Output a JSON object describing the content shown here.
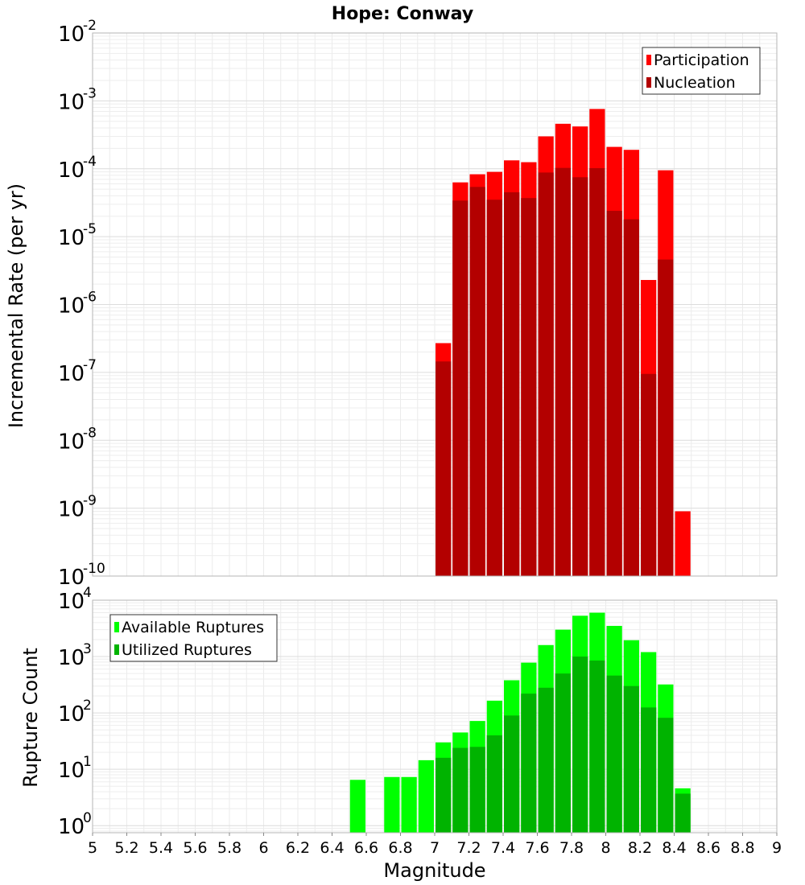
{
  "chart_data": [
    {
      "type": "bar",
      "title": "Hope: Conway",
      "ylabel": "Incremental Rate (per yr)",
      "yscale": "log",
      "ylim": [
        1e-10,
        0.01
      ],
      "xlim": [
        5,
        9
      ],
      "bin_width": 0.1,
      "legend_position": "top-right",
      "grid": true,
      "x": [
        7.05,
        7.15,
        7.25,
        7.35,
        7.45,
        7.55,
        7.65,
        7.75,
        7.85,
        7.95,
        8.05,
        8.15,
        8.25,
        8.35,
        8.45
      ],
      "series": [
        {
          "name": "Participation",
          "color": "#ff0000",
          "values": [
            2.7e-07,
            6.3e-05,
            8.3e-05,
            9e-05,
            0.000133,
            0.000125,
            0.0003,
            0.00046,
            0.00042,
            0.00076,
            0.00021,
            0.00019,
            2.3e-06,
            9.5e-05,
            9e-10
          ]
        },
        {
          "name": "Nucleation",
          "color": "#b30000",
          "values": [
            1.45e-07,
            3.4e-05,
            5.4e-05,
            3.5e-05,
            4.5e-05,
            3.7e-05,
            8.8e-05,
            0.000103,
            7.5e-05,
            0.000102,
            2.4e-05,
            1.8e-05,
            9.5e-08,
            4.6e-06,
            null
          ]
        }
      ],
      "y_ticks": [
        {
          "base": "10",
          "exp": "-10"
        },
        {
          "base": "10",
          "exp": "-9"
        },
        {
          "base": "10",
          "exp": "-8"
        },
        {
          "base": "10",
          "exp": "-7"
        },
        {
          "base": "10",
          "exp": "-6"
        },
        {
          "base": "10",
          "exp": "-5"
        },
        {
          "base": "10",
          "exp": "-4"
        },
        {
          "base": "10",
          "exp": "-3"
        },
        {
          "base": "10",
          "exp": "-2"
        }
      ]
    },
    {
      "type": "bar",
      "ylabel": "Rupture Count",
      "xlabel": "Magnitude",
      "yscale": "log",
      "ylim": [
        0.75,
        10000
      ],
      "xlim": [
        5,
        9
      ],
      "bin_width": 0.1,
      "legend_position": "top-left",
      "grid": true,
      "x": [
        6.55,
        6.75,
        6.85,
        6.95,
        7.05,
        7.15,
        7.25,
        7.35,
        7.45,
        7.55,
        7.65,
        7.75,
        7.85,
        7.95,
        8.05,
        8.15,
        8.25,
        8.35,
        8.45
      ],
      "series": [
        {
          "name": "Available Ruptures",
          "color": "#00ff00",
          "values": [
            6.5,
            7.3,
            7.3,
            14.5,
            30,
            45,
            72,
            165,
            380,
            780,
            1600,
            3000,
            5300,
            6000,
            3500,
            1950,
            1200,
            320,
            4.6
          ]
        },
        {
          "name": "Utilized Ruptures",
          "color": "#00b300",
          "values": [
            null,
            null,
            null,
            null,
            16,
            24,
            25,
            40,
            90,
            220,
            280,
            500,
            1000,
            850,
            460,
            300,
            125,
            82,
            3.7
          ]
        }
      ],
      "y_ticks": [
        {
          "base": "10",
          "exp": "0"
        },
        {
          "base": "10",
          "exp": "1"
        },
        {
          "base": "10",
          "exp": "2"
        },
        {
          "base": "10",
          "exp": "3"
        },
        {
          "base": "10",
          "exp": "4"
        }
      ],
      "x_tick_labels": [
        "5",
        "5.2",
        "5.4",
        "5.6",
        "5.8",
        "6",
        "6.2",
        "6.4",
        "6.6",
        "6.8",
        "7",
        "7.2",
        "7.4",
        "7.6",
        "7.8",
        "8",
        "8.2",
        "8.4",
        "8.6",
        "8.8",
        "9"
      ]
    }
  ]
}
